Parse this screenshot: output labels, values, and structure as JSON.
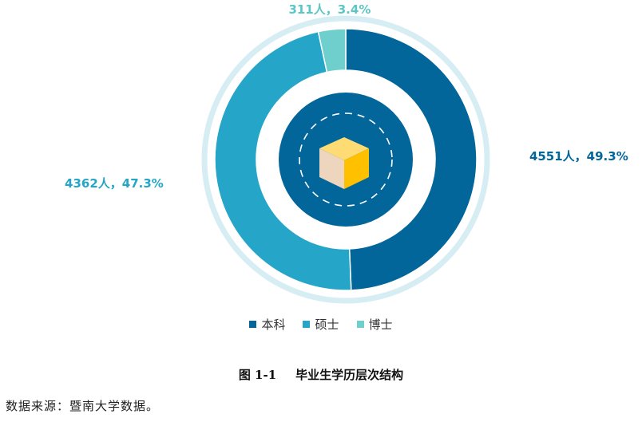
{
  "chart_data": {
    "type": "pie",
    "style": "donut",
    "categories": [
      "本科",
      "硕士",
      "博士"
    ],
    "values": [
      4551,
      4362,
      311
    ],
    "percent": [
      49.3,
      47.3,
      3.4
    ],
    "data_labels": [
      "4551人，49.3%",
      "4362人，47.3%",
      "311人，3.4%"
    ],
    "colors": [
      "#03669A",
      "#25A6C8",
      "#6ECFCC"
    ],
    "legend": "bottom"
  },
  "legend": {
    "items": [
      {
        "label": "本科",
        "color": "#03669A"
      },
      {
        "label": "硕士",
        "color": "#25A6C8"
      },
      {
        "label": "博士",
        "color": "#6ECFCC"
      }
    ]
  },
  "caption": {
    "number": "图 1-1",
    "title": "毕业生学历层次结构"
  },
  "source": "数据来源：暨南大学数据。",
  "colors": {
    "outer_ring": "#D6EDF4",
    "center_circle": "#03669A",
    "cube_top": "#FFDB73",
    "cube_left": "#EDD6BD",
    "cube_right": "#FFC000"
  }
}
